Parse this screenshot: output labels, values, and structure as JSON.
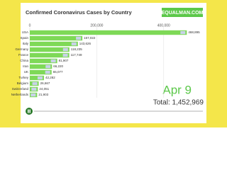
{
  "chart_data": {
    "type": "bar",
    "orientation": "horizontal",
    "title": "Confirmed Coronavirus Cases by Country",
    "brand": "EQUALMAN.COM",
    "date": "Apr 9",
    "total": "Total: 1,452,969",
    "categories": [
      "USA",
      "Spain",
      "Italy",
      "Germany",
      "France",
      "China",
      "Iran",
      "UK",
      "Turkey",
      "Belgium",
      "Switzerland",
      "Netherlands"
    ],
    "values": [
      468895,
      157022,
      143626,
      118235,
      117749,
      81907,
      66220,
      65077,
      42282,
      26667,
      24051,
      21903
    ],
    "value_labels": [
      "468,895",
      "157,022",
      "143,626",
      "118,235",
      "117,749",
      "81,907",
      "66,220",
      "65,077",
      "42,282",
      "26,667",
      "24,051",
      "21,903"
    ],
    "color": "#7ed957",
    "xlim": [
      0,
      500000
    ],
    "xticks": [
      0,
      {
        "value": 200000,
        "label": "200,000"
      },
      {
        "value": 400000,
        "label": "400,000"
      }
    ],
    "grid": true
  }
}
